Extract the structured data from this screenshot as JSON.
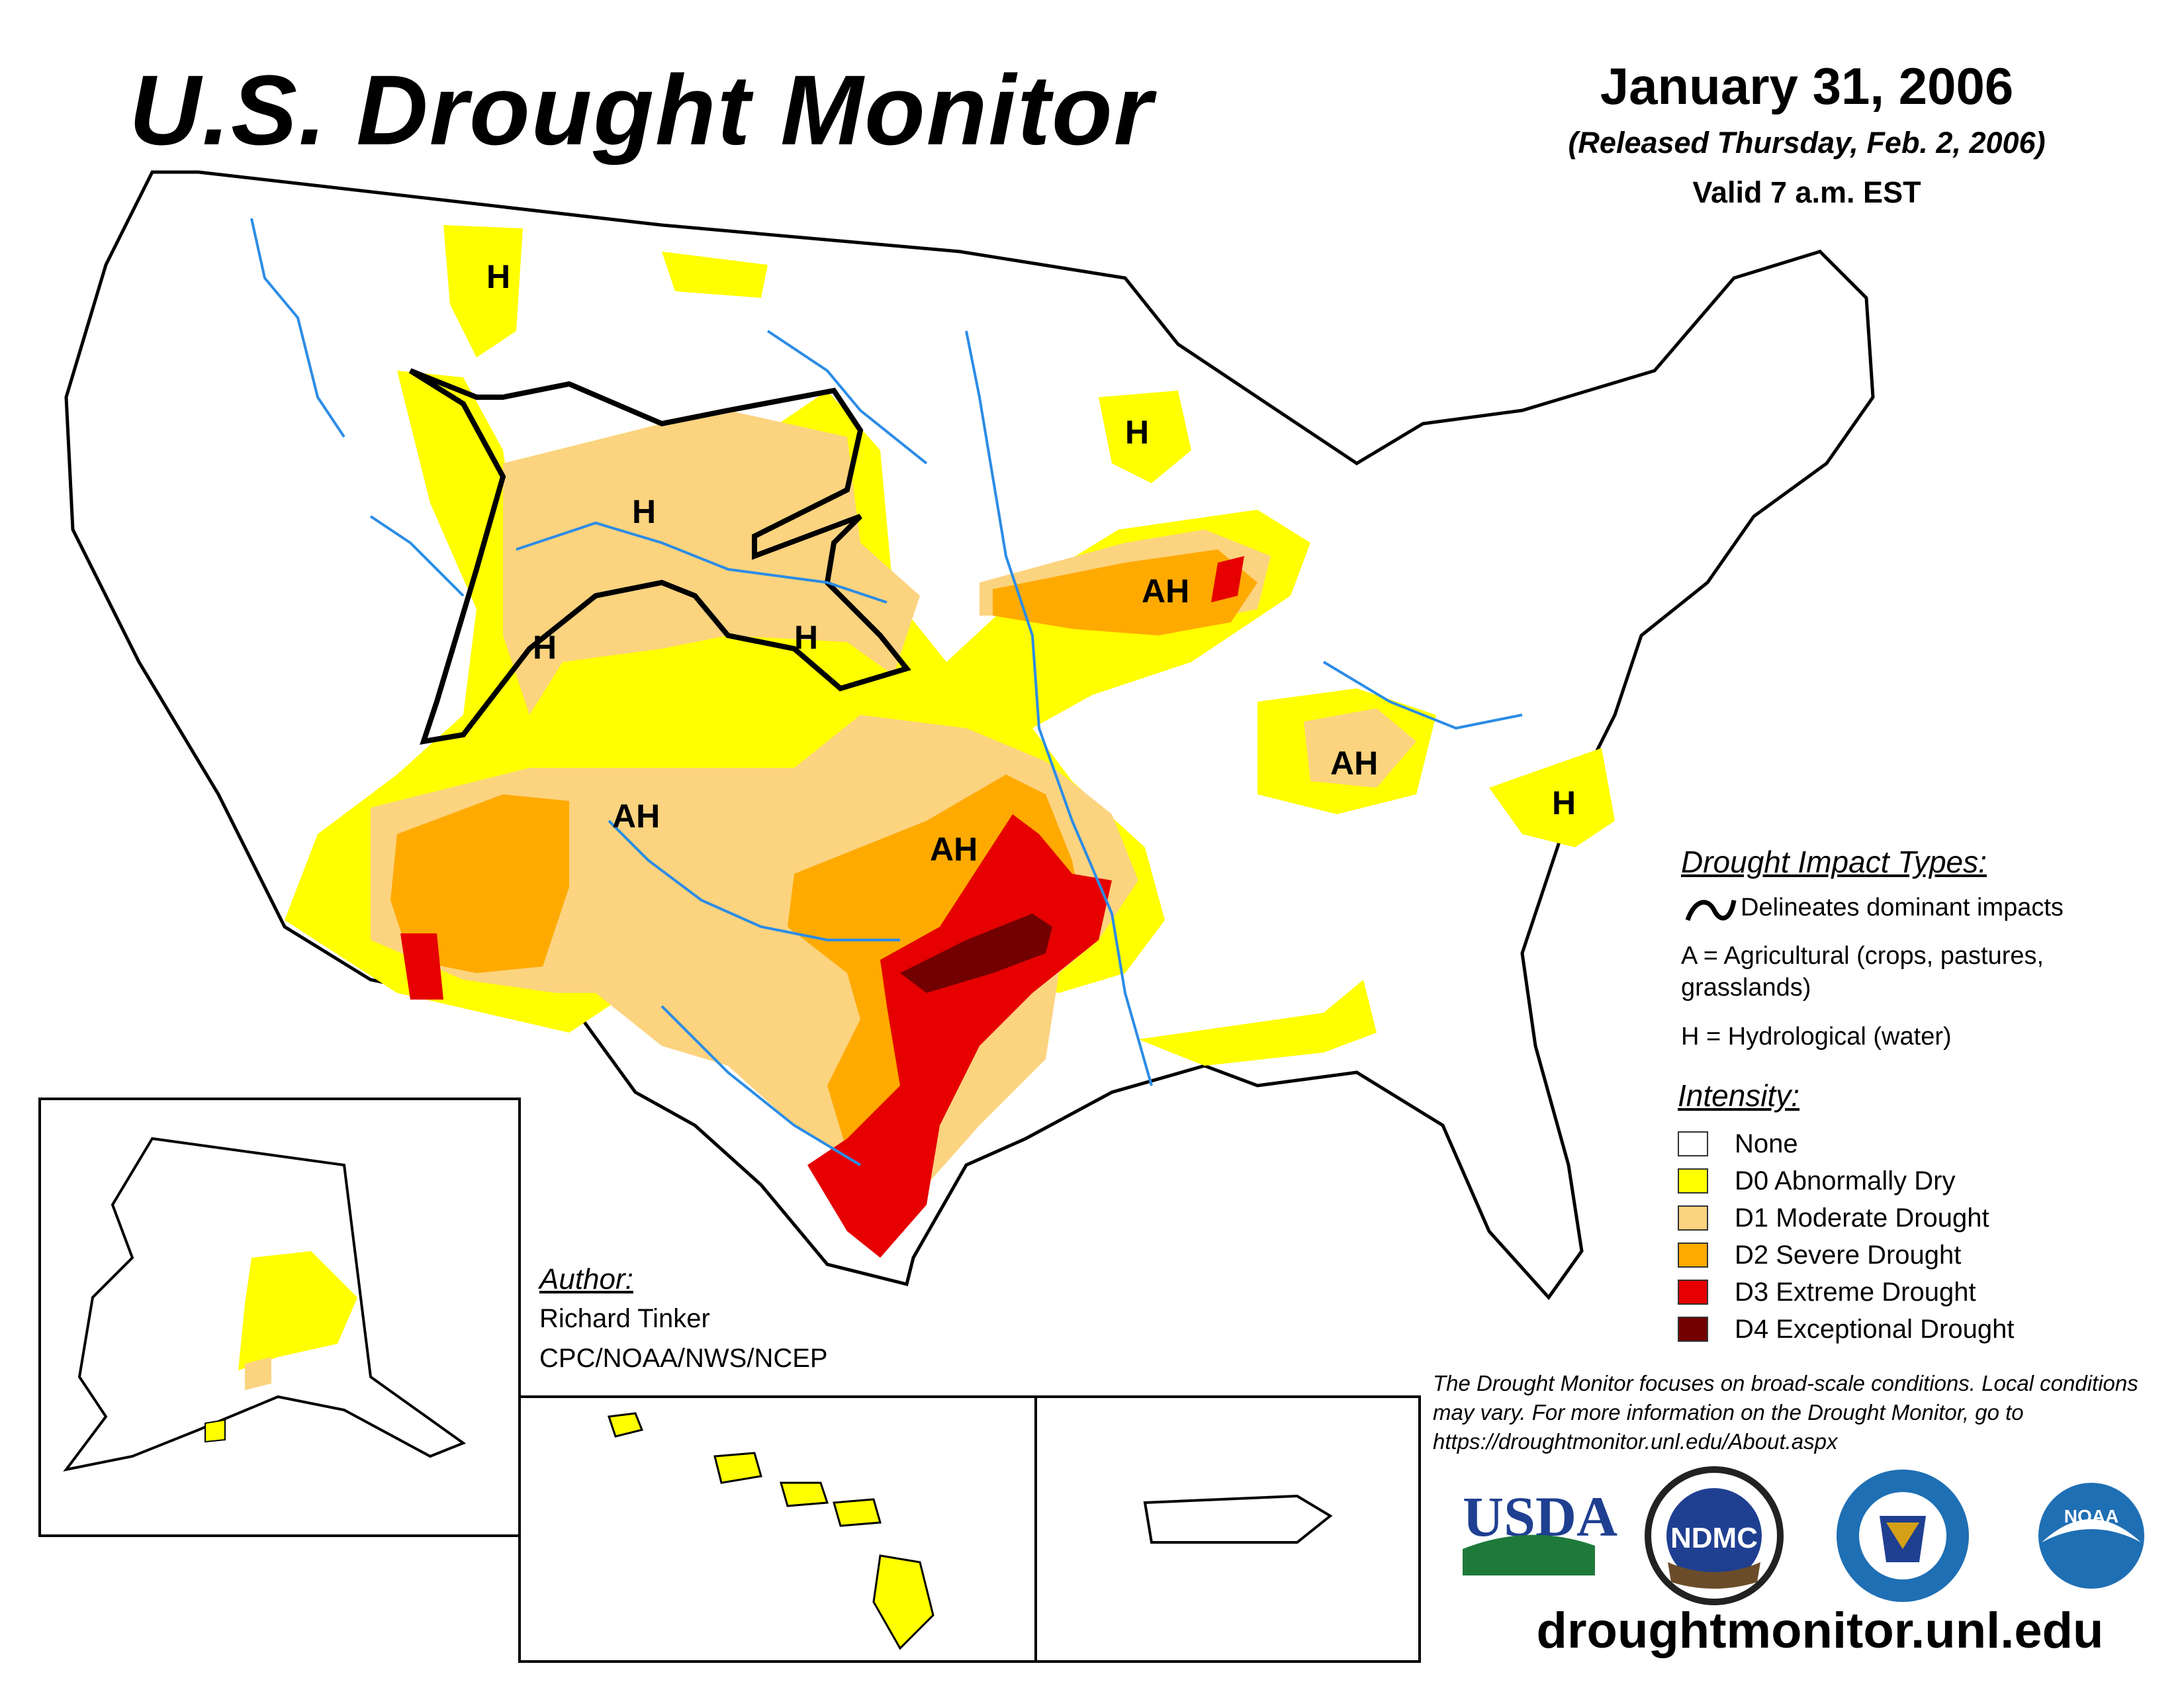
{
  "header": {
    "title": "U.S. Drought Monitor",
    "date": "January 31, 2006",
    "released": "(Released Thursday, Feb. 2, 2006)",
    "valid": "Valid 7 a.m. EST"
  },
  "map_labels": {
    "h_montana_west": "H",
    "h_montana_northeast": "H",
    "h_wyoming": "H",
    "h_wisconsin": "H",
    "h_colorado": "H",
    "h_nebraska": "H",
    "ah_iowa_illinois": "AH",
    "ah_arizona_newmexico": "AH",
    "ah_oklahoma": "AH",
    "ah_kentucky": "AH",
    "h_north_carolina": "H"
  },
  "legend": {
    "impact_heading": "Drought Impact Types:",
    "impact_line": "Delineates dominant impacts",
    "impact_a": "A = Agricultural (crops, pastures, grasslands)",
    "impact_h": "H = Hydrological (water)",
    "intensity_heading": "Intensity:",
    "intensity": [
      {
        "label": "None",
        "color": "#ffffff"
      },
      {
        "label": "D0 Abnormally Dry",
        "color": "#ffff00"
      },
      {
        "label": "D1 Moderate Drought",
        "color": "#fcd37f"
      },
      {
        "label": "D2 Severe Drought",
        "color": "#ffaa00"
      },
      {
        "label": "D3 Extreme Drought",
        "color": "#e60000"
      },
      {
        "label": "D4 Exceptional Drought",
        "color": "#730000"
      }
    ]
  },
  "author": {
    "heading": "Author:",
    "name": "Richard Tinker",
    "org": "CPC/NOAA/NWS/NCEP"
  },
  "disclaimer": "The Drought Monitor focuses on broad-scale conditions. Local conditions may vary. For more information on the Drought Monitor, go to https://droughtmonitor.unl.edu/About.aspx",
  "logos": {
    "usda": "USDA",
    "ndmc": "NDMC",
    "noaa": "NOAA"
  },
  "footer_url": "droughtmonitor.unl.edu",
  "colors": {
    "d0": "#ffff00",
    "d1": "#fcd37f",
    "d2": "#ffaa00",
    "d3": "#e60000",
    "d4": "#730000",
    "rivers": "#2b8ce6"
  }
}
